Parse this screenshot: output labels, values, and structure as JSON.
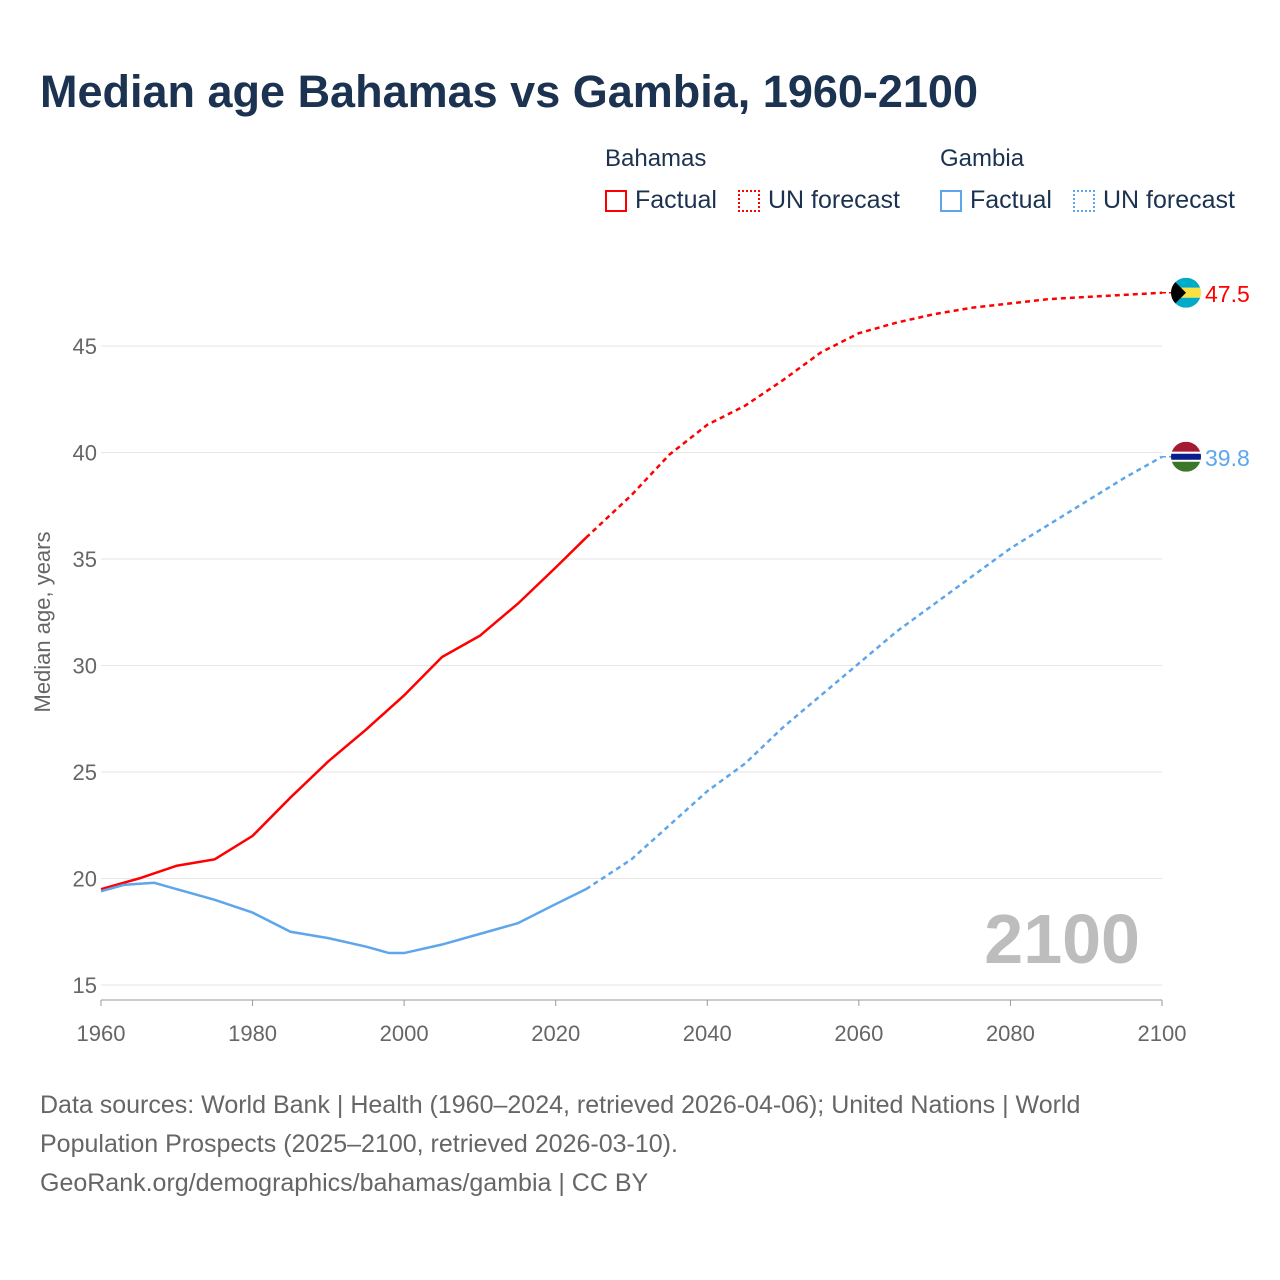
{
  "title": "Median age Bahamas vs Gambia, 1960-2100",
  "legend": {
    "groups": [
      {
        "name": "Bahamas",
        "factual": "Factual",
        "forecast": "UN forecast",
        "color": "#ff0000"
      },
      {
        "name": "Gambia",
        "factual": "Factual",
        "forecast": "UN forecast",
        "color": "#5ea6eb"
      }
    ]
  },
  "footer": {
    "line1": "Data sources: World Bank | Health (1960–2024, retrieved 2026-04-06); United Nations | World",
    "line2": "Population Prospects (2025–2100, retrieved 2026-03-10).",
    "line3": "GeoRank.org/demographics/bahamas/gambia | CC BY"
  },
  "chart_data": {
    "type": "line",
    "title": "Median age Bahamas vs Gambia, 1960-2100",
    "xlabel": "",
    "ylabel": "Median age, years",
    "xlim": [
      1960,
      2100
    ],
    "ylim": [
      15,
      48
    ],
    "xticks": [
      1960,
      1980,
      2000,
      2020,
      2040,
      2060,
      2080,
      2100
    ],
    "yticks": [
      15,
      20,
      25,
      30,
      35,
      40,
      45
    ],
    "year_watermark": "2100",
    "series": [
      {
        "name": "Bahamas",
        "color": "#ff0000",
        "end_label": "47.5",
        "factual": {
          "x": [
            1960,
            1965,
            1970,
            1975,
            1980,
            1985,
            1990,
            1995,
            2000,
            2005,
            2010,
            2015,
            2020,
            2024
          ],
          "y": [
            19.5,
            20.0,
            20.6,
            20.9,
            22.0,
            23.8,
            25.5,
            27.0,
            28.6,
            30.4,
            31.4,
            32.9,
            34.6,
            36.0
          ]
        },
        "forecast": {
          "x": [
            2024,
            2030,
            2035,
            2040,
            2045,
            2050,
            2055,
            2060,
            2065,
            2070,
            2075,
            2080,
            2085,
            2090,
            2095,
            2100
          ],
          "y": [
            36.0,
            38.0,
            39.9,
            41.3,
            42.2,
            43.4,
            44.7,
            45.6,
            46.1,
            46.5,
            46.8,
            47.0,
            47.2,
            47.3,
            47.4,
            47.5
          ]
        }
      },
      {
        "name": "Gambia",
        "color": "#5ea6eb",
        "end_label": "39.8",
        "factual": {
          "x": [
            1960,
            1963,
            1967,
            1970,
            1975,
            1980,
            1985,
            1990,
            1995,
            1998,
            2000,
            2005,
            2010,
            2015,
            2020,
            2024
          ],
          "y": [
            19.4,
            19.7,
            19.8,
            19.5,
            19.0,
            18.4,
            17.5,
            17.2,
            16.8,
            16.5,
            16.5,
            16.9,
            17.4,
            17.9,
            18.8,
            19.5
          ]
        },
        "forecast": {
          "x": [
            2024,
            2030,
            2035,
            2040,
            2045,
            2050,
            2055,
            2060,
            2065,
            2070,
            2075,
            2080,
            2085,
            2090,
            2095,
            2100
          ],
          "y": [
            19.5,
            20.9,
            22.5,
            24.1,
            25.4,
            27.1,
            28.6,
            30.1,
            31.6,
            32.9,
            34.2,
            35.5,
            36.6,
            37.7,
            38.8,
            39.8
          ]
        }
      }
    ]
  }
}
